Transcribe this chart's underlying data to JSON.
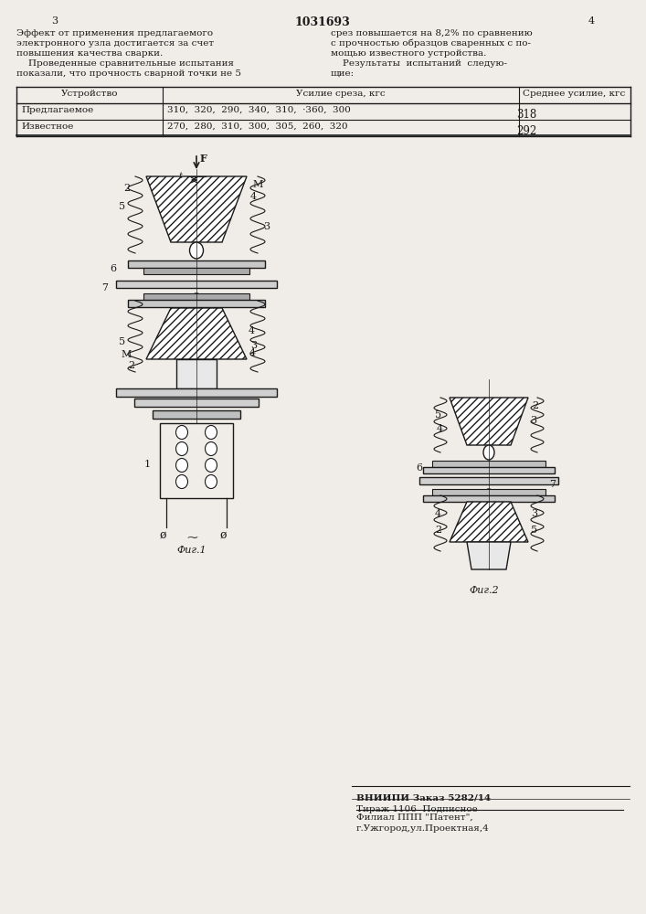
{
  "bg_color": "#f0ede8",
  "line_color": "#1a1a1a",
  "title_text": "1031693",
  "page_left": "3",
  "page_right": "4",
  "text_left_col": [
    "Эффект от применения предлагаемого",
    "электронного узла достигается за счет",
    "повышения качества сварки.",
    "    Проведенные сравнительные испытания",
    "показали, что прочность сварной точки не 5"
  ],
  "text_right_col": [
    "срез повышается на 8,2% по сравнению",
    "с прочностью образцов сваренных с по-",
    "мощью известного устройства.",
    "    Результаты  испытаний  следую-",
    "щие:"
  ],
  "table_header": [
    "Устройство",
    "Усилие среза, кгс",
    "Среднее усилие, кгс"
  ],
  "table_row1": [
    "Предлагаемое",
    "310,  320,  290,  340,  310,  ·360,  300",
    "318"
  ],
  "table_row2": [
    "Известное",
    "270,  280,  310,  300,  305,  260,  320",
    "292"
  ],
  "fig1_caption": "Фиг.1",
  "fig2_caption": "Фиг.2",
  "bottom_text1": "ВНИИПИ Заказ 5282/14",
  "bottom_text2": "Тираж 1106  Подписное",
  "bottom_text3": "Филиал ППП \"Патент\",",
  "bottom_text4": "г.Ужгород,ул.Проектная,4"
}
